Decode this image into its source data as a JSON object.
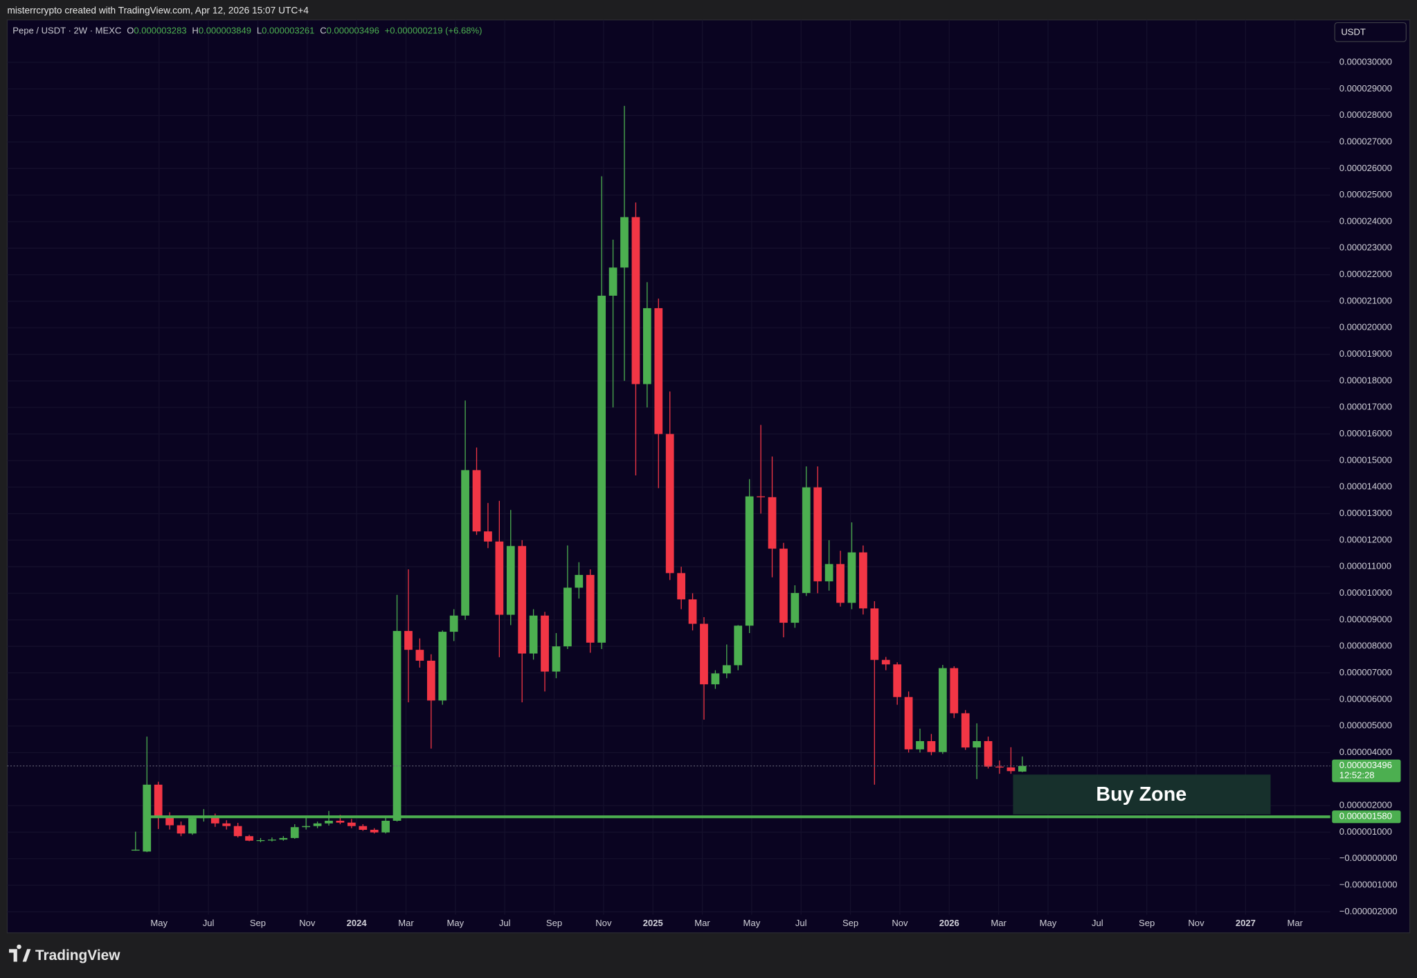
{
  "topbar": {
    "text": "misterrcrypto created with TradingView.com, Apr 12, 2026 15:07 UTC+4"
  },
  "legend": {
    "symbol": "Pepe / USDT · 2W · MEXC",
    "fields": [
      {
        "key": "O",
        "value": "0.000003283"
      },
      {
        "key": "H",
        "value": "0.000003849"
      },
      {
        "key": "L",
        "value": "0.000003261"
      },
      {
        "key": "C",
        "value": "0.000003496"
      }
    ],
    "change": "+0.000000219 (+6.68%)"
  },
  "currency_button": "USDT",
  "footer": {
    "brand": "TradingView"
  },
  "chart_data": {
    "type": "candlestick",
    "up_color": "#4caf50",
    "down_color": "#f23645",
    "grid": true,
    "ylim": [
      -2.11e-06,
      3.16e-05
    ],
    "yticks": [
      {
        "value": 3e-05,
        "label": "0.000030000"
      },
      {
        "value": 2.9e-05,
        "label": "0.000029000"
      },
      {
        "value": 2.8e-05,
        "label": "0.000028000"
      },
      {
        "value": 2.7e-05,
        "label": "0.000027000"
      },
      {
        "value": 2.6e-05,
        "label": "0.000026000"
      },
      {
        "value": 2.5e-05,
        "label": "0.000025000"
      },
      {
        "value": 2.4e-05,
        "label": "0.000024000"
      },
      {
        "value": 2.3e-05,
        "label": "0.000023000"
      },
      {
        "value": 2.2e-05,
        "label": "0.000022000"
      },
      {
        "value": 2.1e-05,
        "label": "0.000021000"
      },
      {
        "value": 2e-05,
        "label": "0.000020000"
      },
      {
        "value": 1.9e-05,
        "label": "0.000019000"
      },
      {
        "value": 1.8e-05,
        "label": "0.000018000"
      },
      {
        "value": 1.7e-05,
        "label": "0.000017000"
      },
      {
        "value": 1.6e-05,
        "label": "0.000016000"
      },
      {
        "value": 1.5e-05,
        "label": "0.000015000"
      },
      {
        "value": 1.4e-05,
        "label": "0.000014000"
      },
      {
        "value": 1.3e-05,
        "label": "0.000013000"
      },
      {
        "value": 1.2e-05,
        "label": "0.000012000"
      },
      {
        "value": 1.1e-05,
        "label": "0.000011000"
      },
      {
        "value": 1e-05,
        "label": "0.000010000"
      },
      {
        "value": 9e-06,
        "label": "0.000009000"
      },
      {
        "value": 8e-06,
        "label": "0.000008000"
      },
      {
        "value": 7e-06,
        "label": "0.000007000"
      },
      {
        "value": 6e-06,
        "label": "0.000006000"
      },
      {
        "value": 5e-06,
        "label": "0.000005000"
      },
      {
        "value": 4e-06,
        "label": "0.000004000"
      },
      {
        "value": 2e-06,
        "label": "0.000002000"
      },
      {
        "value": 1e-06,
        "label": "0.000001000"
      },
      {
        "value": 0,
        "label": "−0.000000000"
      },
      {
        "value": -1e-06,
        "label": "−0.000001000"
      },
      {
        "value": -2e-06,
        "label": "−0.000002000"
      }
    ],
    "xticks": [
      "May",
      "Jul",
      "Sep",
      "Nov",
      "2024",
      "Mar",
      "May",
      "Jul",
      "Sep",
      "Nov",
      "2025",
      "Mar",
      "May",
      "Jul",
      "Sep",
      "Nov",
      "2026",
      "Mar",
      "May",
      "Jul",
      "Sep",
      "Nov",
      "2027",
      "Mar"
    ],
    "candles": [
      [
        3.2e-07,
        1.02e-06,
        3e-07,
        3.4e-07
      ],
      [
        2.7e-07,
        4.6e-06,
        2.5e-07,
        2.79e-06
      ],
      [
        2.79e-06,
        2.9e-06,
        1.12e-06,
        1.6e-06
      ],
      [
        1.6e-06,
        1.75e-06,
        1.1e-06,
        1.26e-06
      ],
      [
        1.26e-06,
        1.4e-06,
        8.5e-07,
        9.5e-07
      ],
      [
        9.5e-07,
        1.6e-06,
        9e-07,
        1.53e-06
      ],
      [
        1.53e-06,
        1.87e-06,
        1.4e-06,
        1.6e-06
      ],
      [
        1.6e-06,
        1.7e-06,
        1.2e-06,
        1.33e-06
      ],
      [
        1.33e-06,
        1.45e-06,
        1.1e-06,
        1.23e-06
      ],
      [
        1.23e-06,
        1.35e-06,
        8e-07,
        8.5e-07
      ],
      [
        8.5e-07,
        9e-07,
        6.6e-07,
        6.8e-07
      ],
      [
        6.8e-07,
        7.8e-07,
        6.2e-07,
        7e-07
      ],
      [
        7e-07,
        8e-07,
        6.5e-07,
        7.2e-07
      ],
      [
        7.2e-07,
        8.5e-07,
        6.8e-07,
        7.8e-07
      ],
      [
        7.8e-07,
        1.3e-06,
        7.5e-07,
        1.19e-06
      ],
      [
        1.19e-06,
        1.55e-06,
        1.1e-06,
        1.23e-06
      ],
      [
        1.23e-06,
        1.4e-06,
        1.15e-06,
        1.33e-06
      ],
      [
        1.33e-06,
        1.8e-06,
        1.25e-06,
        1.43e-06
      ],
      [
        1.43e-06,
        1.65e-06,
        1.3e-06,
        1.36e-06
      ],
      [
        1.36e-06,
        1.5e-06,
        1.15e-06,
        1.23e-06
      ],
      [
        1.23e-06,
        1.3e-06,
        1.05e-06,
        1.09e-06
      ],
      [
        1.09e-06,
        1.15e-06,
        9.5e-07,
        9.9e-07
      ],
      [
        9.9e-07,
        1.6e-06,
        9.5e-07,
        1.43e-06
      ],
      [
        1.43e-06,
        9.94e-06,
        1.4e-06,
        8.58e-06
      ],
      [
        8.58e-06,
        1.09e-05,
        5.89e-06,
        7.87e-06
      ],
      [
        7.87e-06,
        8.3e-06,
        7.2e-06,
        7.46e-06
      ],
      [
        7.46e-06,
        7.7e-06,
        4.15e-06,
        5.96e-06
      ],
      [
        5.96e-06,
        8.6e-06,
        5.8e-06,
        8.55e-06
      ],
      [
        8.55e-06,
        9.4e-06,
        8.2e-06,
        9.16e-06
      ],
      [
        9.16e-06,
        1.726e-05,
        9e-06,
        1.464e-05
      ],
      [
        1.464e-05,
        1.549e-05,
        1.22e-05,
        1.233e-05
      ],
      [
        1.233e-05,
        1.34e-05,
        1.17e-05,
        1.195e-05
      ],
      [
        1.195e-05,
        1.348e-05,
        7.59e-06,
        9.19e-06
      ],
      [
        9.19e-06,
        1.314e-05,
        8.8e-06,
        1.178e-05
      ],
      [
        1.178e-05,
        1.2e-05,
        5.89e-06,
        7.73e-06
      ],
      [
        7.73e-06,
        9.4e-06,
        7.5e-06,
        9.16e-06
      ],
      [
        9.16e-06,
        9.3e-06,
        6.3e-06,
        7.05e-06
      ],
      [
        7.05e-06,
        8.5e-06,
        6.8e-06,
        8e-06
      ],
      [
        8e-06,
        1.18e-05,
        7.9e-06,
        1.021e-05
      ],
      [
        1.021e-05,
        1.117e-05,
        9.8e-06,
        1.069e-05
      ],
      [
        1.069e-05,
        1.09e-05,
        7.76e-06,
        8.14e-06
      ],
      [
        8.14e-06,
        2.571e-05,
        7.9e-06,
        2.121e-05
      ],
      [
        2.121e-05,
        2.332e-05,
        1.7e-05,
        2.227e-05
      ],
      [
        2.227e-05,
        2.836e-05,
        1.8e-05,
        2.417e-05
      ],
      [
        2.417e-05,
        2.472e-05,
        1.444e-05,
        1.788e-05
      ],
      [
        1.788e-05,
        2.172e-05,
        1.7e-05,
        2.074e-05
      ],
      [
        2.074e-05,
        2.11e-05,
        1.396e-05,
        1.6e-05
      ],
      [
        1.6e-05,
        1.76e-05,
        1.05e-05,
        1.076e-05
      ],
      [
        1.076e-05,
        1.1e-05,
        9.4e-06,
        9.77e-06
      ],
      [
        9.77e-06,
        1e-05,
        8.6e-06,
        8.85e-06
      ],
      [
        8.85e-06,
        9.1e-06,
        5.24e-06,
        6.57e-06
      ],
      [
        6.57e-06,
        7.1e-06,
        6.4e-06,
        6.98e-06
      ],
      [
        6.98e-06,
        8.07e-06,
        6.8e-06,
        7.29e-06
      ],
      [
        7.29e-06,
        8.8e-06,
        7.1e-06,
        8.78e-06
      ],
      [
        8.78e-06,
        1.43e-05,
        8.5e-06,
        1.365e-05
      ],
      [
        1.365e-05,
        1.634e-05,
        1.3e-05,
        1.362e-05
      ],
      [
        1.362e-05,
        1.515e-05,
        1.06e-05,
        1.168e-05
      ],
      [
        1.168e-05,
        1.19e-05,
        8.34e-06,
        8.89e-06
      ],
      [
        8.89e-06,
        1.03e-05,
        8.7e-06,
        1.001e-05
      ],
      [
        1.001e-05,
        1.478e-05,
        9.9e-06,
        1.399e-05
      ],
      [
        1.399e-05,
        1.478e-05,
        1e-05,
        1.045e-05
      ],
      [
        1.045e-05,
        1.2e-05,
        1.01e-05,
        1.11e-05
      ],
      [
        1.11e-05,
        1.16e-05,
        9.5e-06,
        9.64e-06
      ],
      [
        9.64e-06,
        1.267e-05,
        9.4e-06,
        1.154e-05
      ],
      [
        1.154e-05,
        1.18e-05,
        9.2e-06,
        9.43e-06
      ],
      [
        9.43e-06,
        9.7e-06,
        2.79e-06,
        7.49e-06
      ],
      [
        7.49e-06,
        7.6e-06,
        7.1e-06,
        7.32e-06
      ],
      [
        7.32e-06,
        7.4e-06,
        5.8e-06,
        6.09e-06
      ],
      [
        6.09e-06,
        6.3e-06,
        4e-06,
        4.12e-06
      ],
      [
        4.12e-06,
        4.9e-06,
        4e-06,
        4.43e-06
      ],
      [
        4.43e-06,
        4.7e-06,
        3.9e-06,
        4.02e-06
      ],
      [
        4.02e-06,
        7.3e-06,
        3.95e-06,
        7.18e-06
      ],
      [
        7.18e-06,
        7.25e-06,
        5.3e-06,
        5.48e-06
      ],
      [
        5.48e-06,
        5.6e-06,
        4.1e-06,
        4.19e-06
      ],
      [
        4.19e-06,
        5.1e-06,
        3e-06,
        4.43e-06
      ],
      [
        4.43e-06,
        4.6e-06,
        3.4e-06,
        3.47e-06
      ],
      [
        3.47e-06,
        3.7e-06,
        3.2e-06,
        3.44e-06
      ],
      [
        3.44e-06,
        4.2e-06,
        3.2e-06,
        3.3e-06
      ],
      [
        3.283e-06,
        3.849e-06,
        3.261e-06,
        3.496e-06
      ]
    ],
    "current_price": {
      "value": 3.496e-06,
      "label": "0.000003496",
      "countdown": "12:52:28"
    },
    "level": {
      "value": 1.58e-06,
      "label": "0.000001580",
      "color": "#4caf50"
    },
    "buy_zone": {
      "text": "Buy Zone",
      "top": 3.17e-06,
      "bottom": 1.67e-06
    }
  }
}
